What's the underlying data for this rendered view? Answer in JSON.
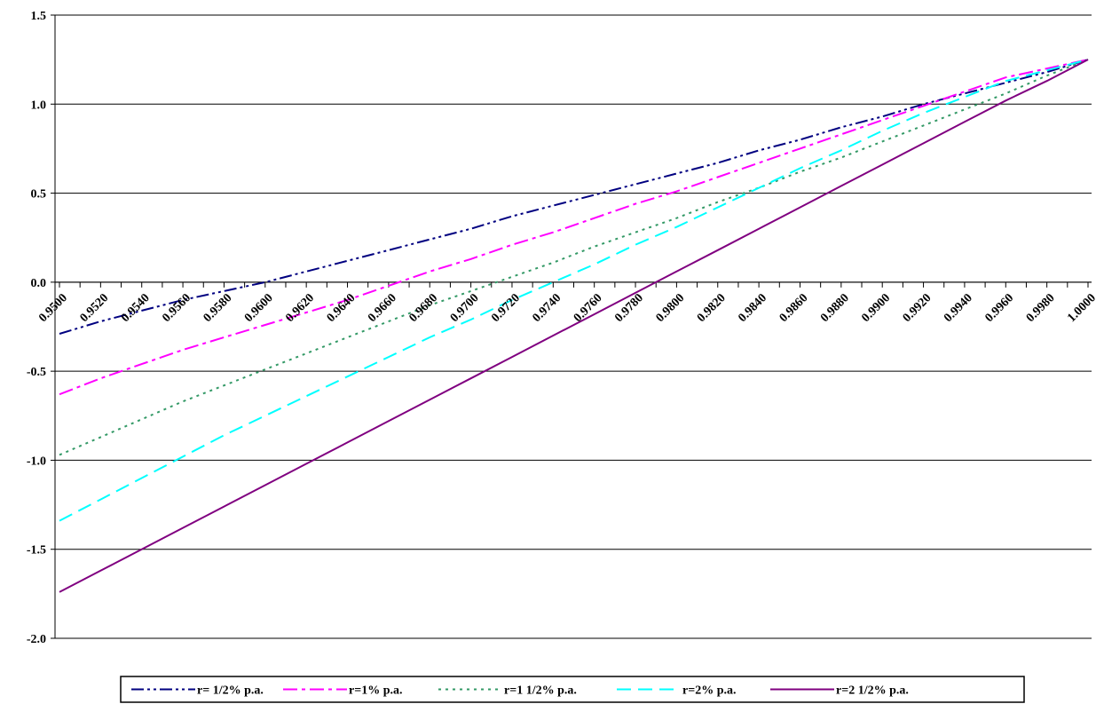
{
  "chart_data": {
    "type": "line",
    "title": "",
    "xlabel": "",
    "ylabel": "",
    "x": [
      0.95,
      0.952,
      0.954,
      0.956,
      0.958,
      0.96,
      0.962,
      0.964,
      0.966,
      0.968,
      0.97,
      0.972,
      0.974,
      0.976,
      0.978,
      0.98,
      0.982,
      0.984,
      0.986,
      0.988,
      0.99,
      0.992,
      0.994,
      0.996,
      0.998,
      1.0
    ],
    "x_tick_labels": [
      "0.9500",
      "0.9520",
      "0.9540",
      "0.9560",
      "0.9580",
      "0.9600",
      "0.9620",
      "0.9640",
      "0.9660",
      "0.9680",
      "0.9700",
      "0.9720",
      "0.9740",
      "0.9760",
      "0.9780",
      "0.9800",
      "0.9820",
      "0.9840",
      "0.9860",
      "0.9880",
      "0.9900",
      "0.9920",
      "0.9940",
      "0.9960",
      "0.9980",
      "1.0000"
    ],
    "ylim": [
      -2.0,
      1.5
    ],
    "y_ticks": [
      1.5,
      1.0,
      0.5,
      0.0,
      -0.5,
      -1.0,
      -1.5,
      -2.0
    ],
    "y_tick_labels": [
      "1.5",
      "1.0",
      "0.5",
      "0.0",
      "-0.5",
      "-1.0",
      "-1.5",
      "-2.0"
    ],
    "grid": "horizontal",
    "legend_position": "bottom",
    "series": [
      {
        "name": "r= 1/2% p.a.",
        "color": "#000080",
        "dash": "dash-dot-dot",
        "values": [
          -0.29,
          -0.22,
          -0.16,
          -0.1,
          -0.05,
          0.0,
          0.06,
          0.12,
          0.18,
          0.24,
          0.3,
          0.37,
          0.43,
          0.49,
          0.55,
          0.61,
          0.67,
          0.74,
          0.8,
          0.87,
          0.93,
          1.0,
          1.06,
          1.12,
          1.18,
          1.25
        ]
      },
      {
        "name": "r=1% p.a.",
        "color": "#FF00FF",
        "dash": "dash-dot",
        "values": [
          -0.63,
          -0.54,
          -0.46,
          -0.38,
          -0.31,
          -0.24,
          -0.17,
          -0.1,
          -0.02,
          0.06,
          0.13,
          0.21,
          0.28,
          0.36,
          0.44,
          0.51,
          0.59,
          0.67,
          0.75,
          0.83,
          0.91,
          0.99,
          1.07,
          1.15,
          1.2,
          1.25
        ]
      },
      {
        "name": "r=1 1/2% p.a.",
        "color": "#339966",
        "dash": "dot",
        "values": [
          -0.97,
          -0.87,
          -0.77,
          -0.67,
          -0.58,
          -0.49,
          -0.4,
          -0.31,
          -0.22,
          -0.13,
          -0.05,
          0.03,
          0.11,
          0.2,
          0.28,
          0.36,
          0.45,
          0.53,
          0.62,
          0.7,
          0.79,
          0.88,
          0.97,
          1.06,
          1.16,
          1.25
        ]
      },
      {
        "name": "r=2% p.a.",
        "color": "#00FFFF",
        "dash": "dash",
        "values": [
          -1.34,
          -1.22,
          -1.1,
          -0.98,
          -0.86,
          -0.75,
          -0.64,
          -0.53,
          -0.42,
          -0.31,
          -0.21,
          -0.1,
          0.0,
          0.1,
          0.21,
          0.31,
          0.42,
          0.53,
          0.64,
          0.74,
          0.85,
          0.95,
          1.04,
          1.13,
          1.19,
          1.25
        ]
      },
      {
        "name": "r=2 1/2% p.a.",
        "color": "#800080",
        "dash": "solid",
        "values": [
          -1.74,
          -1.62,
          -1.5,
          -1.38,
          -1.26,
          -1.14,
          -1.02,
          -0.9,
          -0.78,
          -0.66,
          -0.54,
          -0.42,
          -0.3,
          -0.18,
          -0.06,
          0.06,
          0.18,
          0.3,
          0.42,
          0.54,
          0.66,
          0.78,
          0.9,
          1.02,
          1.13,
          1.25
        ]
      }
    ]
  }
}
